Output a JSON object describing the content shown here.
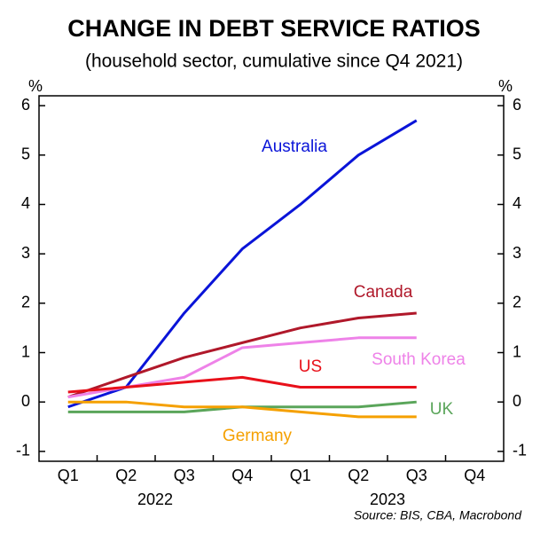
{
  "chart_data": {
    "type": "line",
    "title": "CHANGE IN DEBT SERVICE RATIOS",
    "subtitle": "(household sector, cumulative since Q4 2021)",
    "y_unit": "%",
    "source": "Source: BIS, CBA, Macrobond",
    "categories": [
      "Q1",
      "Q2",
      "Q3",
      "Q4",
      "Q1",
      "Q2",
      "Q3",
      "Q4"
    ],
    "years": [
      "2022",
      "2023"
    ],
    "series": [
      {
        "name": "Australia",
        "color": "#0a14d8",
        "values": [
          -0.1,
          0.3,
          1.8,
          3.1,
          4.0,
          5.0,
          5.7,
          null
        ]
      },
      {
        "name": "Canada",
        "color": "#b0182a",
        "values": [
          0.1,
          0.5,
          0.9,
          1.2,
          1.5,
          1.7,
          1.8,
          null
        ]
      },
      {
        "name": "South Korea",
        "color": "#ee82e8",
        "values": [
          0.1,
          0.3,
          0.5,
          1.1,
          1.2,
          1.3,
          1.3,
          null
        ]
      },
      {
        "name": "US",
        "color": "#e8101a",
        "values": [
          0.2,
          0.3,
          0.4,
          0.5,
          0.3,
          0.3,
          0.3,
          null
        ]
      },
      {
        "name": "UK",
        "color": "#5aa55a",
        "values": [
          -0.2,
          -0.2,
          -0.2,
          -0.1,
          -0.1,
          -0.1,
          0.0,
          null
        ]
      },
      {
        "name": "Germany",
        "color": "#f5a000",
        "values": [
          0.0,
          0.0,
          -0.1,
          -0.1,
          -0.2,
          -0.3,
          -0.3,
          null
        ]
      }
    ],
    "ylim": [
      -1.2,
      6.2
    ],
    "yticks": [
      -1,
      0,
      1,
      2,
      3,
      4,
      5,
      6
    ],
    "grid": false
  }
}
